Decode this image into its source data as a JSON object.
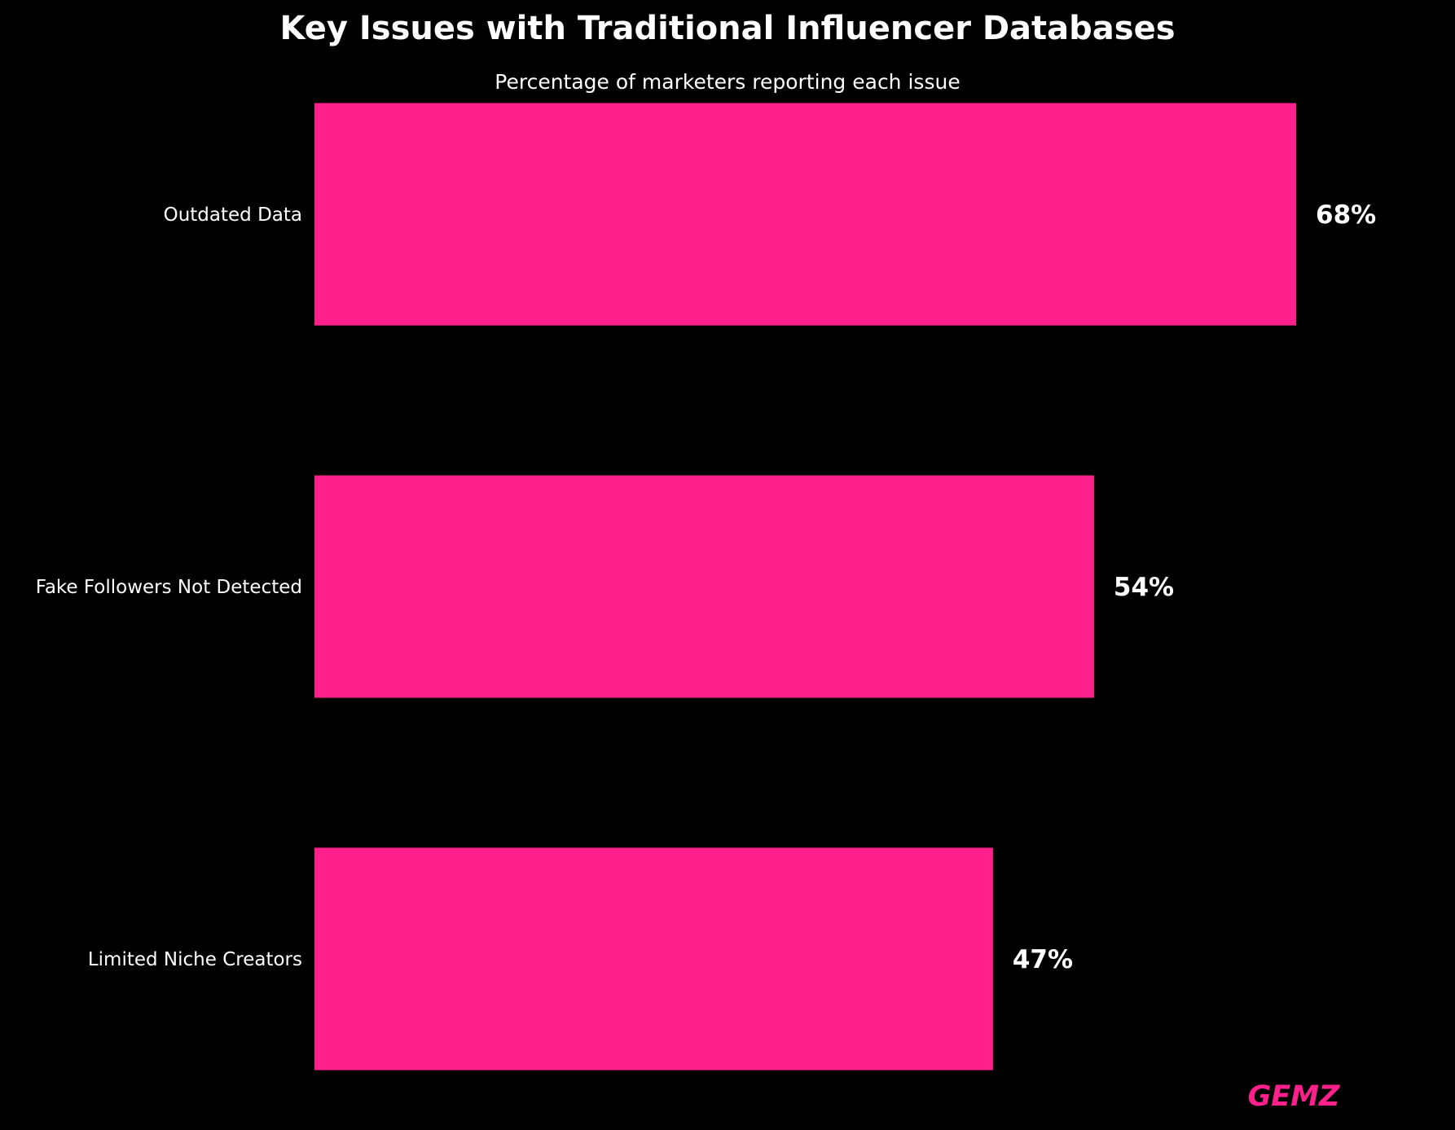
{
  "chart_data": {
    "type": "bar",
    "orientation": "horizontal",
    "title": "Key Issues with Traditional Influencer Databases",
    "subtitle": "Percentage of marketers reporting each issue",
    "categories": [
      "Outdated Data",
      "Fake Followers Not Detected",
      "Limited Niche Creators"
    ],
    "values": [
      68,
      54,
      47
    ],
    "value_labels": [
      "68%",
      "54%",
      "47%"
    ],
    "xlim": [
      0,
      68
    ],
    "grid": false,
    "bar_color": "#ff208c",
    "background_color": "#000000"
  },
  "brand": {
    "text": "GEMZ",
    "color": "#ff208c"
  }
}
